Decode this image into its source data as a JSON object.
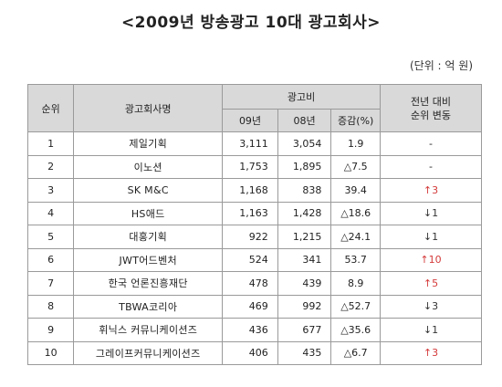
{
  "title": "<2009년 방송광고 10대 광고회사>",
  "unit": "(단위 : 억 원)",
  "headers": {
    "rank": "순위",
    "company": "광고회사명",
    "adcost": "광고비",
    "y09": "09년",
    "y08": "08년",
    "change": "증감(%)",
    "rankchange": "전년 대비\n순위 변동"
  },
  "rows": [
    {
      "rank": "1",
      "company": "제일기획",
      "y09": "3,111",
      "y08": "3,054",
      "change": "1.9",
      "rankchange": "-",
      "dir": "none"
    },
    {
      "rank": "2",
      "company": "이노션",
      "y09": "1,753",
      "y08": "1,895",
      "change": "△7.5",
      "rankchange": "-",
      "dir": "none"
    },
    {
      "rank": "3",
      "company": "SK M&C",
      "y09": "1,168",
      "y08": "838",
      "change": "39.4",
      "rankchange": "↑3",
      "dir": "up"
    },
    {
      "rank": "4",
      "company": "HS애드",
      "y09": "1,163",
      "y08": "1,428",
      "change": "△18.6",
      "rankchange": "↓1",
      "dir": "down"
    },
    {
      "rank": "5",
      "company": "대홍기획",
      "y09": "922",
      "y08": "1,215",
      "change": "△24.1",
      "rankchange": "↓1",
      "dir": "down"
    },
    {
      "rank": "6",
      "company": "JWT어드벤처",
      "y09": "524",
      "y08": "341",
      "change": "53.7",
      "rankchange": "↑10",
      "dir": "up"
    },
    {
      "rank": "7",
      "company": "한국 언론진흥재단",
      "y09": "478",
      "y08": "439",
      "change": "8.9",
      "rankchange": "↑5",
      "dir": "up"
    },
    {
      "rank": "8",
      "company": "TBWA코리아",
      "y09": "469",
      "y08": "992",
      "change": "△52.7",
      "rankchange": "↓3",
      "dir": "down"
    },
    {
      "rank": "9",
      "company": "휘닉스 커뮤니케이션즈",
      "y09": "436",
      "y08": "677",
      "change": "△35.6",
      "rankchange": "↓1",
      "dir": "down"
    },
    {
      "rank": "10",
      "company": "그레이프커뮤니케이션즈",
      "y09": "406",
      "y08": "435",
      "change": "△6.7",
      "rankchange": "↑3",
      "dir": "up"
    }
  ]
}
